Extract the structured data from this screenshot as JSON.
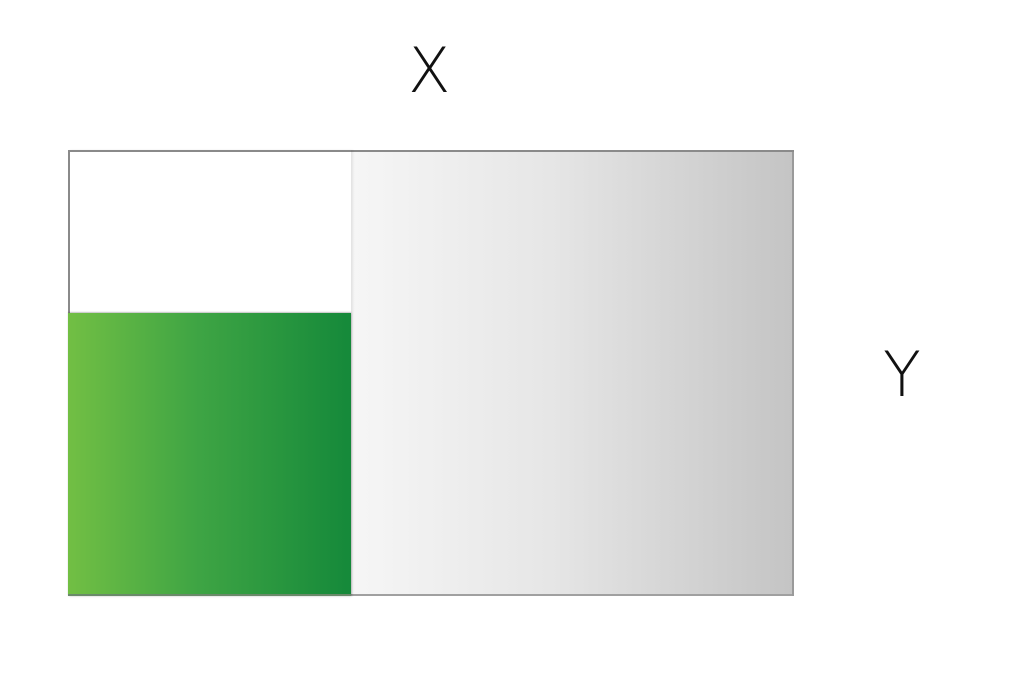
{
  "labels": {
    "x": "X",
    "y": "Y"
  },
  "colors": {
    "green_start": "#72bf44",
    "green_end": "#15893a",
    "gray_start": "#f6f6f6",
    "gray_end": "#c4c4c4",
    "border": "#8a8a8a"
  }
}
